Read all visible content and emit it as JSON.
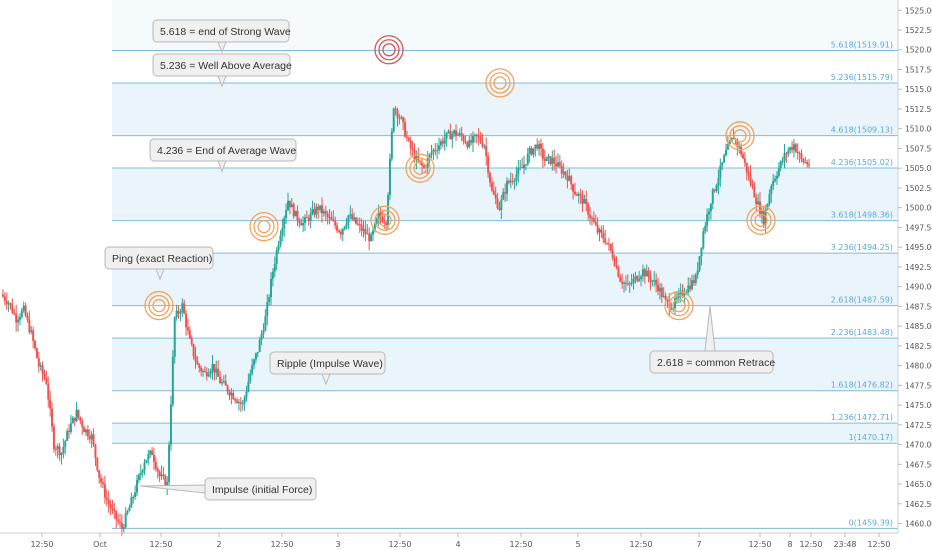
{
  "chart_data": {
    "type": "candlestick",
    "y_axis": {
      "ticks": [
        1460,
        1462.5,
        1465,
        1467.5,
        1470,
        1472.5,
        1475,
        1477.5,
        1480,
        1482.5,
        1485,
        1487.5,
        1490,
        1492.5,
        1495,
        1497.5,
        1500,
        1502.5,
        1505,
        1507.5,
        1510,
        1512.5,
        1515,
        1517.5,
        1520,
        1522.5,
        1525
      ],
      "tick_labels": [
        "1460.00",
        "1462.50",
        "1465.00",
        "1467.50",
        "1470.00",
        "1472.50",
        "1475.00",
        "1477.50",
        "1480.00",
        "1482.50",
        "1485.00",
        "1487.50",
        "1490.00",
        "1492.50",
        "1495.00",
        "1497.50",
        "1500.00",
        "1502.50",
        "1505.00",
        "1507.50",
        "1510.00",
        "1512.50",
        "1515.00",
        "1517.50",
        "1520.00",
        "1522.50",
        "1525.00"
      ],
      "range": [
        1458.8,
        1526.3
      ]
    },
    "x_axis": {
      "tick_labels": [
        "12:50",
        "Oct",
        "12:50",
        "2",
        "12:50",
        "3",
        "12:50",
        "4",
        "12:50",
        "5",
        "12:50",
        "7",
        "12:50",
        "8",
        "12:50",
        "23:48",
        "12:50"
      ]
    },
    "fib_levels": [
      {
        "ratio": "0",
        "price": "1459.39",
        "label": "0(1459.39)",
        "value": 1459.39
      },
      {
        "ratio": "1",
        "price": "1470.17",
        "label": "1(1470.17)",
        "value": 1470.17
      },
      {
        "ratio": "1.236",
        "price": "1472.71",
        "label": "1.236(1472.71)",
        "value": 1472.71
      },
      {
        "ratio": "1.618",
        "price": "1476.82",
        "label": "1.618(1476.82)",
        "value": 1476.82
      },
      {
        "ratio": "2.236",
        "price": "1483.48",
        "label": "2.236(1483.48)",
        "value": 1483.48
      },
      {
        "ratio": "2.618",
        "price": "1487.59",
        "label": "2.618(1487.59)",
        "value": 1487.59
      },
      {
        "ratio": "3.236",
        "price": "1494.25",
        "label": "3.236(1494.25)",
        "value": 1494.25
      },
      {
        "ratio": "3.618",
        "price": "1498.36",
        "label": "3.618(1498.36)",
        "value": 1498.36
      },
      {
        "ratio": "4.236",
        "price": "1505.02",
        "label": "4.236(1505.02)",
        "value": 1505.02
      },
      {
        "ratio": "4.618",
        "price": "1509.13",
        "label": "4.618(1509.13)",
        "value": 1509.13
      },
      {
        "ratio": "5.236",
        "price": "1515.79",
        "label": "5.236(1515.79)",
        "value": 1515.79
      },
      {
        "ratio": "5.618",
        "price": "1519.91",
        "label": "5.618(1519.91)",
        "value": 1519.91
      }
    ],
    "annotations": [
      {
        "text": "5.618 = end of Strong Wave"
      },
      {
        "text": "5.236 = Well Above Average"
      },
      {
        "text": "4.236 = End of Average Wave"
      },
      {
        "text": "Ping (exact Reaction)"
      },
      {
        "text": "Ripple (Impulse Wave)"
      },
      {
        "text": "Impulse (initial Force)"
      },
      {
        "text": "2.618 = common Retrace"
      }
    ],
    "price_path": [
      1489,
      1488,
      1486,
      1487,
      1484,
      1480,
      1478,
      1470,
      1469,
      1472,
      1474,
      1472,
      1471,
      1466,
      1463,
      1461,
      1459.4,
      1462,
      1465,
      1468,
      1469,
      1466,
      1465,
      1486,
      1487.6,
      1483,
      1480,
      1479,
      1480,
      1478,
      1477,
      1476,
      1475,
      1479,
      1482,
      1486,
      1492,
      1497,
      1501,
      1499,
      1498,
      1499,
      1500,
      1499,
      1498,
      1497,
      1499,
      1498,
      1497,
      1496,
      1499,
      1498.4,
      1513,
      1511,
      1508,
      1506,
      1505,
      1507,
      1508,
      1509,
      1509.5,
      1509,
      1508,
      1509,
      1508,
      1502,
      1500,
      1503,
      1504,
      1505,
      1507,
      1508,
      1506,
      1506,
      1505,
      1504,
      1502,
      1501,
      1499,
      1497,
      1496,
      1494,
      1491,
      1490,
      1491,
      1492,
      1491,
      1490,
      1488,
      1487.6,
      1489,
      1490,
      1491,
      1497,
      1501,
      1504,
      1507,
      1509,
      1507,
      1504,
      1501,
      1498.4,
      1503,
      1505,
      1507,
      1508,
      1506,
      1505.5
    ]
  },
  "colors": {
    "up": "#26a69a",
    "down": "#ef5350",
    "fib": "#7fbcdb",
    "fib_label": "#5aa9d6",
    "circle_orange": "#f5a25a",
    "circle_red": "#d9534f",
    "band": "#eaf4fb"
  }
}
